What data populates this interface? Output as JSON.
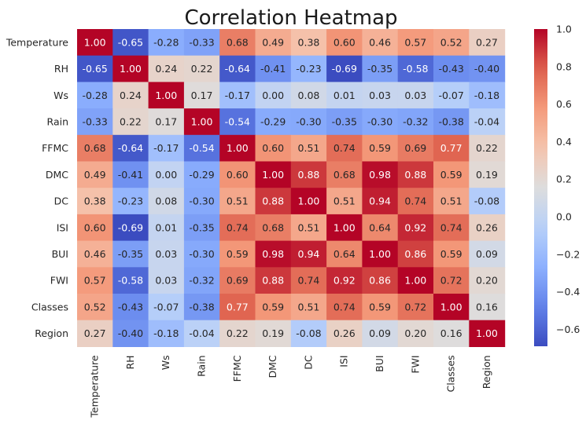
{
  "chart_data": {
    "type": "heatmap",
    "title": "Correlation Heatmap",
    "row_labels": [
      "Temperature",
      "RH",
      "Ws",
      "Rain",
      "FFMC",
      "DMC",
      "DC",
      "ISI",
      "BUI",
      "FWI",
      "Classes",
      "Region"
    ],
    "col_labels": [
      "Temperature",
      "RH",
      "Ws",
      "Rain",
      "FFMC",
      "DMC",
      "DC",
      "ISI",
      "BUI",
      "FWI",
      "Classes",
      "Region"
    ],
    "values": [
      [
        1.0,
        -0.65,
        -0.28,
        -0.33,
        0.68,
        0.49,
        0.38,
        0.6,
        0.46,
        0.57,
        0.52,
        0.27
      ],
      [
        -0.65,
        1.0,
        0.24,
        0.22,
        -0.64,
        -0.41,
        -0.23,
        -0.69,
        -0.35,
        -0.58,
        -0.43,
        -0.4
      ],
      [
        -0.28,
        0.24,
        1.0,
        0.17,
        -0.17,
        -0.0,
        0.08,
        0.01,
        0.03,
        0.03,
        -0.07,
        -0.18
      ],
      [
        -0.33,
        0.22,
        0.17,
        1.0,
        -0.54,
        -0.29,
        -0.3,
        -0.35,
        -0.3,
        -0.32,
        -0.38,
        -0.04
      ],
      [
        0.68,
        -0.64,
        -0.17,
        -0.54,
        1.0,
        0.6,
        0.51,
        0.74,
        0.59,
        0.69,
        0.77,
        0.22
      ],
      [
        0.49,
        -0.41,
        -0.0,
        -0.29,
        0.6,
        1.0,
        0.88,
        0.68,
        0.98,
        0.88,
        0.59,
        0.19
      ],
      [
        0.38,
        -0.23,
        0.08,
        -0.3,
        0.51,
        0.88,
        1.0,
        0.51,
        0.94,
        0.74,
        0.51,
        -0.08
      ],
      [
        0.6,
        -0.69,
        0.01,
        -0.35,
        0.74,
        0.68,
        0.51,
        1.0,
        0.64,
        0.92,
        0.74,
        0.26
      ],
      [
        0.46,
        -0.35,
        0.03,
        -0.3,
        0.59,
        0.98,
        0.94,
        0.64,
        1.0,
        0.86,
        0.59,
        0.09
      ],
      [
        0.57,
        -0.58,
        0.03,
        -0.32,
        0.69,
        0.88,
        0.74,
        0.92,
        0.86,
        1.0,
        0.72,
        0.2
      ],
      [
        0.52,
        -0.43,
        -0.07,
        -0.38,
        0.77,
        0.59,
        0.51,
        0.74,
        0.59,
        0.72,
        1.0,
        0.16
      ],
      [
        0.27,
        -0.4,
        -0.18,
        -0.04,
        0.22,
        0.19,
        -0.08,
        0.26,
        0.09,
        0.2,
        0.16,
        1.0
      ]
    ],
    "value_format": "2 decimals",
    "colormap": "coolwarm",
    "colorbar": {
      "range": [
        -0.69,
        1.0
      ],
      "ticks": [
        1.0,
        0.8,
        0.6,
        0.4,
        0.2,
        0.0,
        -0.2,
        -0.4,
        -0.6
      ],
      "tick_labels": [
        "1.0",
        "0.8",
        "0.6",
        "0.4",
        "0.2",
        "0.0",
        "−0.2",
        "−0.4",
        "−0.6"
      ],
      "placement": "right"
    },
    "grid": false
  }
}
